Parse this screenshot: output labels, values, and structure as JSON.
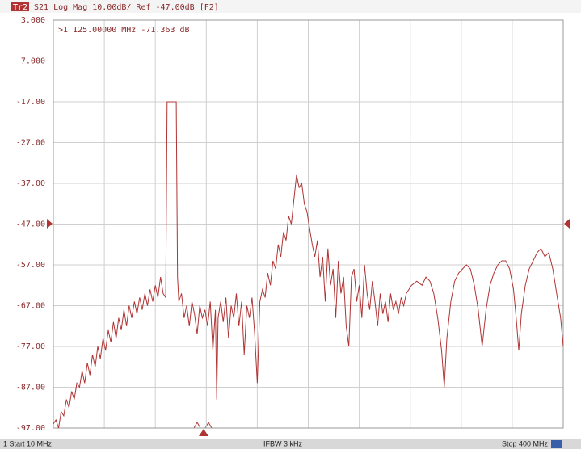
{
  "chart_data": {
    "type": "line",
    "trace_label": "Tr2",
    "title": "S21 Log Mag 10.00dB/ Ref -47.00dB [F2]",
    "annotation": ">1  125.00000 MHz  -71.363 dB",
    "status": [
      "1  Start 10 MHz",
      "IFBW 3 kHz",
      "Stop 400 MHz"
    ],
    "color": "#b03434",
    "grid": true,
    "xlim": [
      10,
      400
    ],
    "xticks": [
      10,
      49,
      88,
      127,
      166,
      205,
      244,
      283,
      322,
      361,
      400
    ],
    "ylim": [
      -97,
      3
    ],
    "yticks": [
      {
        "value": 3,
        "label": "3.000"
      },
      {
        "value": -7,
        "label": "-7.000"
      },
      {
        "value": -17,
        "label": "-17.00"
      },
      {
        "value": -27,
        "label": "-27.00"
      },
      {
        "value": -37,
        "label": "-37.00"
      },
      {
        "value": -47,
        "label": "-47.00"
      },
      {
        "value": -57,
        "label": "-57.00"
      },
      {
        "value": -67,
        "label": "-67.00"
      },
      {
        "value": -77,
        "label": "-77.00"
      },
      {
        "value": -87,
        "label": "-87.00"
      },
      {
        "value": -97,
        "label": "-97.00"
      }
    ],
    "x": [
      10,
      12,
      14,
      16,
      18,
      20,
      22,
      24,
      26,
      28,
      30,
      32,
      34,
      36,
      38,
      40,
      42,
      44,
      46,
      48,
      50,
      52,
      54,
      56,
      58,
      60,
      62,
      64,
      66,
      68,
      70,
      72,
      74,
      76,
      78,
      80,
      82,
      84,
      86,
      88,
      90,
      92,
      94,
      96,
      97,
      104,
      105,
      106,
      108,
      110,
      112,
      114,
      116,
      118,
      120,
      122,
      124,
      126,
      128,
      130,
      132,
      134,
      135,
      136,
      138,
      140,
      142,
      144,
      146,
      148,
      150,
      152,
      154,
      156,
      158,
      160,
      162,
      164,
      166,
      168,
      170,
      172,
      174,
      176,
      178,
      180,
      182,
      184,
      186,
      188,
      190,
      192,
      194,
      196,
      198,
      200,
      202,
      204,
      206,
      208,
      210,
      212,
      214,
      216,
      218,
      220,
      222,
      224,
      226,
      228,
      230,
      232,
      234,
      236,
      238,
      240,
      242,
      244,
      246,
      248,
      250,
      252,
      254,
      256,
      258,
      260,
      262,
      264,
      266,
      268,
      270,
      272,
      274,
      276,
      278,
      280,
      284,
      288,
      292,
      295,
      298,
      301,
      304,
      307,
      309,
      311,
      314,
      317,
      320,
      323,
      326,
      329,
      332,
      335,
      338,
      341,
      344,
      347,
      350,
      353,
      356,
      359,
      362,
      364,
      366,
      368,
      371,
      374,
      377,
      380,
      383,
      386,
      389,
      392,
      395,
      398,
      400
    ],
    "values": [
      -96,
      -95,
      -97,
      -93,
      -94,
      -90,
      -92,
      -88,
      -90,
      -86,
      -87,
      -83,
      -86,
      -81,
      -84,
      -79,
      -82,
      -77,
      -80,
      -75,
      -78,
      -73,
      -76,
      -71,
      -75,
      -70,
      -73,
      -68,
      -72,
      -67,
      -70,
      -66,
      -69,
      -65,
      -68,
      -64,
      -67,
      -63,
      -66,
      -62,
      -65,
      -60,
      -64,
      -65,
      -17,
      -17,
      -60,
      -66,
      -64,
      -70,
      -67,
      -72,
      -66,
      -69,
      -74,
      -67,
      -70,
      -68,
      -72,
      -66,
      -78,
      -68,
      -90,
      -70,
      -66,
      -71,
      -65,
      -75,
      -67,
      -70,
      -64,
      -72,
      -66,
      -79,
      -67,
      -70,
      -65,
      -74,
      -86,
      -66,
      -63,
      -65,
      -59,
      -62,
      -56,
      -58,
      -52,
      -55,
      -49,
      -51,
      -45,
      -47,
      -41,
      -35,
      -38,
      -37,
      -42,
      -44,
      -48,
      -52,
      -55,
      -51,
      -60,
      -55,
      -66,
      -53,
      -62,
      -58,
      -70,
      -56,
      -64,
      -60,
      -72,
      -77,
      -60,
      -58,
      -66,
      -62,
      -70,
      -57,
      -64,
      -68,
      -61,
      -66,
      -72,
      -64,
      -69,
      -66,
      -71,
      -64,
      -68,
      -66,
      -69,
      -65,
      -67,
      -64,
      -62,
      -61,
      -62,
      -60,
      -61,
      -64,
      -70,
      -78,
      -87,
      -75,
      -66,
      -61,
      -59,
      -58,
      -57,
      -58,
      -62,
      -68,
      -77,
      -68,
      -62,
      -59,
      -57,
      -56,
      -56,
      -58,
      -63,
      -70,
      -78,
      -69,
      -62,
      -58,
      -56,
      -54,
      -53,
      -55,
      -54,
      -58,
      -64,
      -70,
      -77
    ]
  }
}
